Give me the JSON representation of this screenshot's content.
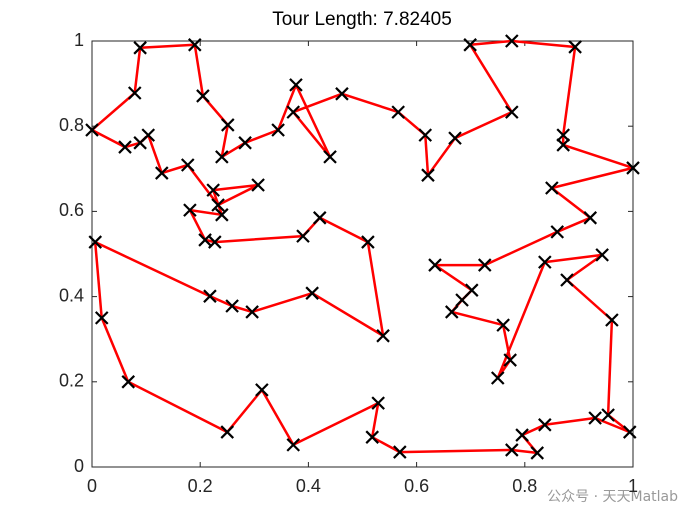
{
  "chart_data": {
    "type": "line",
    "title": "Tour Length: 7.82405",
    "x": [
      0,
      0.079,
      0.089,
      0.19,
      0.205,
      0.251,
      0.24,
      0.283,
      0.344,
      0.377,
      0.44,
      0.372,
      0.462,
      0.566,
      0.616,
      0.621,
      0.671,
      0.776,
      0.699,
      0.776,
      0.893,
      0.871,
      0.871,
      1.0,
      0.85,
      0.921,
      0.86,
      0.726,
      0.634,
      0.702,
      0.684,
      0.665,
      0.76,
      0.773,
      0.75,
      0.837,
      0.943,
      0.878,
      0.961,
      0.954,
      0.994,
      0.93,
      0.837,
      0.795,
      0.823,
      0.776,
      0.569,
      0.518,
      0.529,
      0.372,
      0.314,
      0.25,
      0.067,
      0.018,
      0.006,
      0.218,
      0.259,
      0.296,
      0.407,
      0.538,
      0.51,
      0.421,
      0.39,
      0.227,
      0.209,
      0.181,
      0.24,
      0.224,
      0.307,
      0.233,
      0.177,
      0.129,
      0.104,
      0.089,
      0.061
    ],
    "values": [
      0.791,
      0.878,
      0.984,
      0.991,
      0.871,
      0.803,
      0.728,
      0.761,
      0.791,
      0.897,
      0.728,
      0.833,
      0.876,
      0.833,
      0.779,
      0.685,
      0.772,
      0.833,
      0.991,
      1.0,
      0.986,
      0.779,
      0.756,
      0.702,
      0.655,
      0.585,
      0.552,
      0.474,
      0.474,
      0.415,
      0.392,
      0.364,
      0.333,
      0.251,
      0.209,
      0.481,
      0.498,
      0.439,
      0.345,
      0.122,
      0.082,
      0.115,
      0.099,
      0.075,
      0.033,
      0.04,
      0.035,
      0.07,
      0.15,
      0.052,
      0.181,
      0.082,
      0.2,
      0.35,
      0.528,
      0.401,
      0.378,
      0.364,
      0.408,
      0.308,
      0.528,
      0.585,
      0.542,
      0.528,
      0.533,
      0.603,
      0.592,
      0.65,
      0.662,
      0.615,
      0.709,
      0.69,
      0.779,
      0.761,
      0.751
    ],
    "closed": true,
    "color": "#ff0000",
    "marker": "x",
    "marker_color": "#000000",
    "xlim": [
      0,
      1
    ],
    "ylim": [
      0,
      1
    ],
    "xticks": [
      0,
      0.2,
      0.4,
      0.6,
      0.8,
      1
    ],
    "yticks": [
      0,
      0.2,
      0.4,
      0.6,
      0.8,
      1
    ],
    "grid": false,
    "watermark": "公众号 · 天天Matlab"
  }
}
